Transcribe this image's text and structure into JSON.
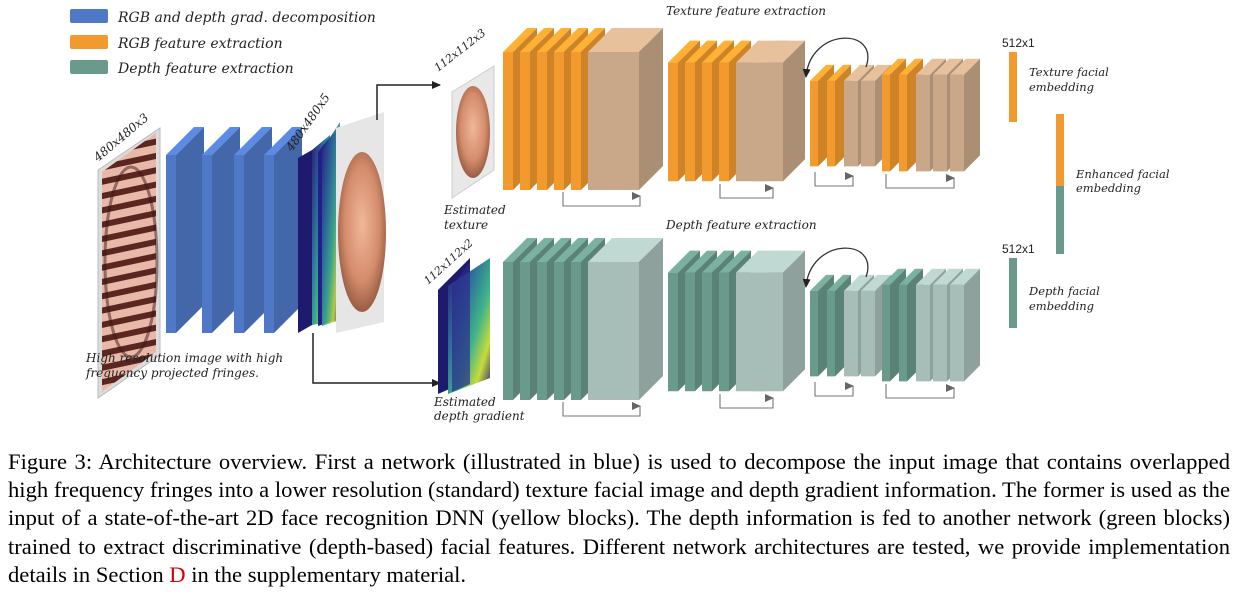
{
  "legend": [
    {
      "label": "RGB and depth grad. decomposition",
      "color": "#4f79c6"
    },
    {
      "label": "RGB feature extraction",
      "color": "#f39a2e"
    },
    {
      "label": "Depth feature extraction",
      "color": "#6a9a8b"
    }
  ],
  "input": {
    "dims": "480x480x3",
    "caption_line1": "High resolution image with high",
    "caption_line2": "frequency projected fringes."
  },
  "decomposition": {
    "dims": "480x480x5"
  },
  "texture": {
    "dims": "112x112x3",
    "label_line1": "Estimated",
    "label_line2": "texture",
    "section_title": "Texture feature extraction",
    "embedding_size": "512x1",
    "embedding_line1": "Texture facial",
    "embedding_line2": "embedding"
  },
  "depth": {
    "dims": "112x112x2",
    "label_line1": "Estimated",
    "label_line2": "depth gradient",
    "section_title": "Depth feature extraction",
    "embedding_size": "512x1",
    "embedding_line1": "Depth facial",
    "embedding_line2": "embedding"
  },
  "enhanced": {
    "line1": "Enhanced facial",
    "line2": "embedding"
  },
  "colors": {
    "blue": "#4f79c6",
    "orange": "#f39a2e",
    "orange_light": "#c8a888",
    "green": "#6a9a8b",
    "green_light": "#a7bdb7",
    "reference": "#d40000"
  },
  "caption": {
    "text": "Figure 3: Architecture overview. First a network (illustrated in blue) is used to decompose the input image that contains overlapped high frequency fringes into a lower resolution (standard) texture facial image and depth gradient information. The former is used as the input of a state-of-the-art 2D face recognition DNN (yellow blocks). The depth information is fed to another network (green blocks) trained to extract discriminative (depth-based) facial features. Different network architectures are tested, we provide implementation details in Section ",
    "ref": "D",
    "tail": " in the supplementary material."
  }
}
